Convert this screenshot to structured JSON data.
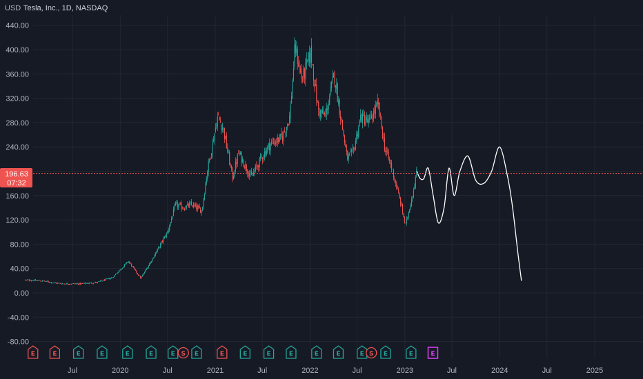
{
  "header": {
    "currency_label": "USD",
    "symbol_title": "Tesla, Inc., 1D, NASDAQ"
  },
  "price_tag": {
    "price": "196.63",
    "countdown": "07:32",
    "value": 196.63
  },
  "colors": {
    "background": "#161a25",
    "up": "#26a69a",
    "down": "#ef5350",
    "projection": "#ffffff",
    "price_line": "#ef5350",
    "earnings_badge_up": "#26a69a",
    "earnings_badge_down": "#ef5350",
    "earnings_badge_future": "#e040fb"
  },
  "chart_data": {
    "type": "candlestick",
    "title": "Tesla, Inc., 1D, NASDAQ",
    "ylabel": "USD",
    "ylim": [
      -100,
      460
    ],
    "y_ticks": [
      440,
      400,
      360,
      320,
      280,
      240,
      200,
      160,
      120,
      80,
      40,
      0,
      -40,
      -80
    ],
    "y_tick_labels": [
      "440.00",
      "400.00",
      "360.00",
      "320.00",
      "280.00",
      "240.00",
      "200.00",
      "160.00",
      "120.00",
      "80.00",
      "40.00",
      "0.00",
      "-40.00",
      "-80.00"
    ],
    "x_ticks": [
      {
        "label": "Jul",
        "date": "2019-07-01"
      },
      {
        "label": "2020",
        "date": "2020-01-01"
      },
      {
        "label": "Jul",
        "date": "2020-07-01"
      },
      {
        "label": "2021",
        "date": "2021-01-01"
      },
      {
        "label": "Jul",
        "date": "2021-07-01"
      },
      {
        "label": "2022",
        "date": "2022-01-01"
      },
      {
        "label": "Jul",
        "date": "2022-07-01"
      },
      {
        "label": "2023",
        "date": "2023-01-01"
      },
      {
        "label": "Jul",
        "date": "2023-07-01"
      },
      {
        "label": "2024",
        "date": "2024-01-01"
      },
      {
        "label": "Jul",
        "date": "2024-07-01"
      },
      {
        "label": "2025",
        "date": "2025-01-01"
      }
    ],
    "price_series": {
      "dates": [
        "2019-01-01",
        "2019-03-01",
        "2019-05-01",
        "2019-06-01",
        "2019-08-01",
        "2019-10-01",
        "2019-12-01",
        "2020-02-01",
        "2020-03-20",
        "2020-05-01",
        "2020-07-01",
        "2020-08-01",
        "2020-09-01",
        "2020-10-01",
        "2020-11-10",
        "2020-12-01",
        "2021-01-10",
        "2021-02-01",
        "2021-03-08",
        "2021-04-01",
        "2021-05-20",
        "2021-07-01",
        "2021-08-01",
        "2021-09-15",
        "2021-10-15",
        "2021-11-04",
        "2021-12-01",
        "2022-01-04",
        "2022-02-01",
        "2022-03-01",
        "2022-04-04",
        "2022-05-24",
        "2022-06-15",
        "2022-07-15",
        "2022-08-15",
        "2022-09-20",
        "2022-10-15",
        "2022-11-15",
        "2022-12-20",
        "2023-01-03",
        "2023-02-01",
        "2023-02-16"
      ],
      "values": [
        21,
        20,
        16,
        15,
        15,
        17,
        25,
        52,
        24,
        54,
        100,
        145,
        140,
        145,
        135,
        200,
        290,
        270,
        190,
        230,
        190,
        225,
        245,
        255,
        290,
        405,
        350,
        395,
        300,
        290,
        360,
        220,
        230,
        290,
        280,
        310,
        240,
        200,
        140,
        110,
        165,
        200
      ]
    },
    "projection_series": {
      "dates": [
        "2023-02-16",
        "2023-03-01",
        "2023-03-15",
        "2023-04-01",
        "2023-04-20",
        "2023-05-10",
        "2023-06-01",
        "2023-06-20",
        "2023-07-10",
        "2023-08-01",
        "2023-09-01",
        "2023-10-01",
        "2023-11-01",
        "2023-12-01",
        "2024-01-01",
        "2024-02-01",
        "2024-02-20",
        "2024-03-10",
        "2024-03-25"
      ],
      "values": [
        200,
        188,
        188,
        205,
        160,
        115,
        140,
        205,
        160,
        200,
        225,
        185,
        180,
        200,
        240,
        190,
        140,
        70,
        20
      ]
    },
    "events": [
      {
        "date": "2019-01-30",
        "label": "E",
        "kind": "earnings-down"
      },
      {
        "date": "2019-04-24",
        "label": "E",
        "kind": "earnings-down"
      },
      {
        "date": "2019-07-24",
        "label": "E",
        "kind": "earnings-up"
      },
      {
        "date": "2019-10-23",
        "label": "E",
        "kind": "earnings-up"
      },
      {
        "date": "2020-01-29",
        "label": "E",
        "kind": "earnings-up"
      },
      {
        "date": "2020-04-29",
        "label": "E",
        "kind": "earnings-up"
      },
      {
        "date": "2020-07-22",
        "label": "E",
        "kind": "earnings-up"
      },
      {
        "date": "2020-08-31",
        "label": "S",
        "kind": "split"
      },
      {
        "date": "2020-10-21",
        "label": "E",
        "kind": "earnings-up"
      },
      {
        "date": "2021-01-27",
        "label": "E",
        "kind": "earnings-down"
      },
      {
        "date": "2021-04-26",
        "label": "E",
        "kind": "earnings-up"
      },
      {
        "date": "2021-07-26",
        "label": "E",
        "kind": "earnings-up"
      },
      {
        "date": "2021-10-20",
        "label": "E",
        "kind": "earnings-up"
      },
      {
        "date": "2022-01-26",
        "label": "E",
        "kind": "earnings-up"
      },
      {
        "date": "2022-04-20",
        "label": "E",
        "kind": "earnings-up"
      },
      {
        "date": "2022-07-20",
        "label": "E",
        "kind": "earnings-up"
      },
      {
        "date": "2022-08-25",
        "label": "S",
        "kind": "split"
      },
      {
        "date": "2022-10-19",
        "label": "E",
        "kind": "earnings-up"
      },
      {
        "date": "2023-01-25",
        "label": "E",
        "kind": "earnings-up"
      },
      {
        "date": "2023-04-19",
        "label": "E",
        "kind": "earnings-future"
      }
    ],
    "grid": true,
    "current_price_line": 196.63
  }
}
